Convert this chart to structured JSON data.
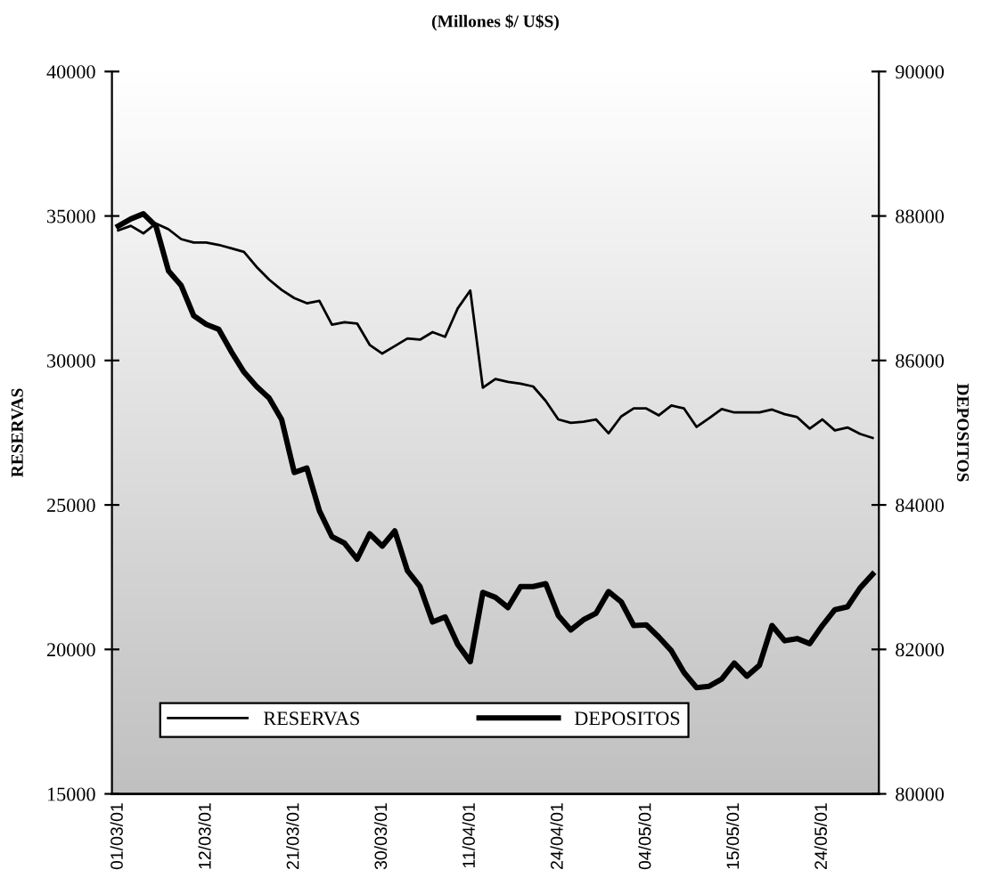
{
  "chart_data": {
    "type": "line",
    "title": "(Millones $/ U$S)",
    "ylabel": "RESERVAS",
    "y2label": "DEPOSITOS",
    "categories": [
      "01/03/01",
      null,
      null,
      null,
      null,
      null,
      null,
      "12/03/01",
      null,
      null,
      null,
      null,
      null,
      null,
      "21/03/01",
      null,
      null,
      null,
      null,
      null,
      null,
      "30/03/01",
      null,
      null,
      null,
      null,
      null,
      null,
      "11/04/01",
      null,
      null,
      null,
      null,
      null,
      null,
      "24/04/01",
      null,
      null,
      null,
      null,
      null,
      null,
      "04/05/01",
      null,
      null,
      null,
      null,
      null,
      null,
      "15/05/01",
      null,
      null,
      null,
      null,
      null,
      null,
      "24/05/01",
      null,
      null,
      null,
      null
    ],
    "series": [
      {
        "name": "RESERVAS",
        "color": "#000000",
        "axis": "y",
        "values": [
          34500,
          34660,
          34400,
          34740,
          34540,
          34200,
          34080,
          34080,
          34000,
          33880,
          33760,
          33240,
          32800,
          32440,
          32160,
          31980,
          32060,
          31240,
          31320,
          31280,
          30540,
          30240,
          30500,
          30760,
          30720,
          30980,
          30820,
          31800,
          32420,
          29060,
          29360,
          29260,
          29200,
          29100,
          28600,
          27960,
          27840,
          27880,
          27960,
          27480,
          28060,
          28340,
          28340,
          28100,
          28440,
          28340,
          27700,
          28000,
          28320,
          28200,
          28200,
          28200,
          28300,
          28140,
          28040,
          27640,
          27960,
          27580,
          27680,
          27460,
          27320
        ]
      },
      {
        "name": "DEPOSITOS",
        "color": "#000000",
        "axis": "y2",
        "values": [
          87860,
          87960,
          88030,
          87860,
          87240,
          87040,
          86620,
          86500,
          86430,
          86120,
          85840,
          85640,
          85480,
          85180,
          84450,
          84510,
          83920,
          83560,
          83470,
          83250,
          83600,
          83430,
          83640,
          83090,
          82870,
          82380,
          82450,
          82070,
          81830,
          82790,
          82720,
          82580,
          82870,
          82870,
          82910,
          82470,
          82270,
          82410,
          82500,
          82800,
          82660,
          82330,
          82340,
          82170,
          81980,
          81680,
          81470,
          81490,
          81590,
          81810,
          81630,
          81780,
          82330,
          82120,
          82150,
          82080,
          82330,
          82550,
          82590,
          82850,
          83040
        ]
      }
    ],
    "ylim": [
      15000,
      40000
    ],
    "yticks": [
      15000,
      20000,
      25000,
      30000,
      35000,
      40000
    ],
    "y2lim": [
      80000,
      90000
    ],
    "y2ticks": [
      80000,
      82000,
      84000,
      86000,
      88000,
      90000
    ],
    "legend": "bottom left",
    "grid": false,
    "marker": "none",
    "line_style": "solid"
  }
}
